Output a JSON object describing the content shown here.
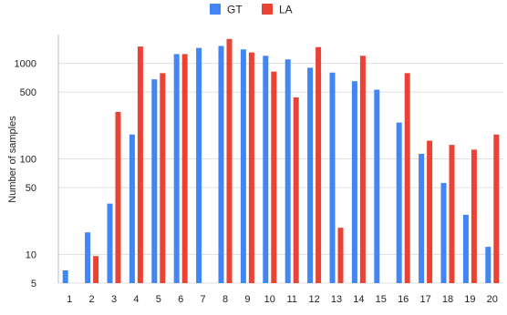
{
  "chart_data": {
    "type": "bar",
    "ylabel": "Number of samples",
    "yscale": "log",
    "ylim": [
      5,
      2000
    ],
    "yticks": [
      5,
      10,
      50,
      100,
      500,
      1000
    ],
    "ytick_labels": [
      "5",
      "10",
      "50",
      "100",
      "500",
      "1000"
    ],
    "categories": [
      "1",
      "2",
      "3",
      "4",
      "5",
      "6",
      "7",
      "8",
      "9",
      "10",
      "11",
      "12",
      "13",
      "14",
      "15",
      "16",
      "17",
      "18",
      "19",
      "20"
    ],
    "legend_position": "top",
    "series": [
      {
        "name": "GT",
        "color": "#4285f4",
        "values": [
          6.8,
          17,
          34,
          180,
          680,
          1250,
          1450,
          1520,
          1400,
          1200,
          1100,
          900,
          800,
          650,
          530,
          240,
          113,
          56,
          26,
          12
        ]
      },
      {
        "name": "LA",
        "color": "#ea4335",
        "values": [
          null,
          9.6,
          310,
          1500,
          790,
          1250,
          null,
          1800,
          1300,
          820,
          440,
          1480,
          19,
          1200,
          null,
          790,
          155,
          140,
          125,
          180
        ]
      }
    ]
  }
}
